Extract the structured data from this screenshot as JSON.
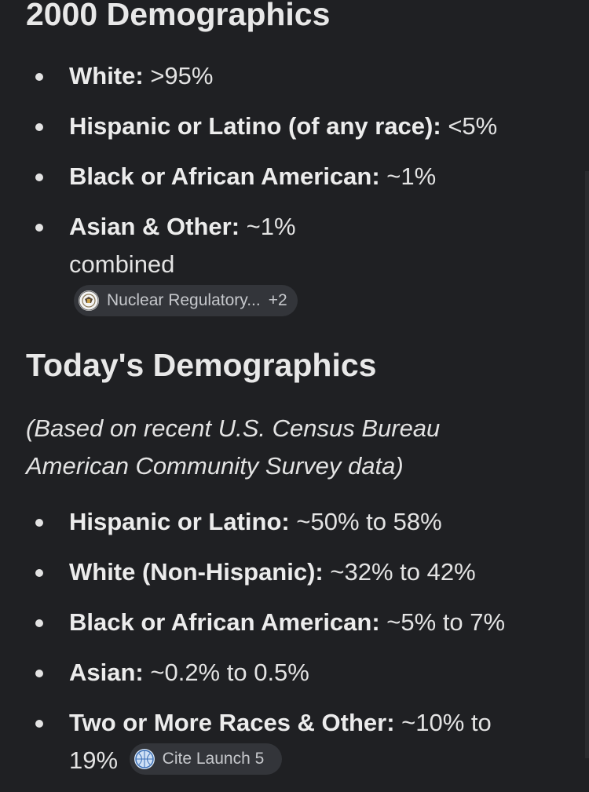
{
  "section_2000": {
    "heading": "2000 Demographics",
    "items": [
      {
        "label": "White:",
        "value": " >95%"
      },
      {
        "label": "Hispanic or Latino (of any race):",
        "value": " <5%"
      },
      {
        "label": "Black or African American:",
        "value": " ~1%"
      },
      {
        "label": "Asian & Other:",
        "value": " ~1% combined"
      }
    ],
    "source_chip": {
      "text": "Nuclear Regulatory...",
      "count": "+2",
      "icon": "seal-icon"
    }
  },
  "section_today": {
    "heading": "Today's Demographics",
    "subtitle": "(Based on recent U.S. Census Bureau American Community Survey data)",
    "items": [
      {
        "label": "Hispanic or Latino:",
        "value": " ~50% to 58%"
      },
      {
        "label": "White (Non-Hispanic):",
        "value": " ~32% to 42%"
      },
      {
        "label": "Black or African American:",
        "value": " ~5% to 7%"
      },
      {
        "label": "Asian:",
        "value": " ~0.2% to 0.5%"
      },
      {
        "label": "Two or More Races & Other:",
        "value": " ~10% to 19%"
      }
    ],
    "source_chip": {
      "text": "Cite Launch 5",
      "count": "",
      "icon": "globe-icon"
    }
  },
  "colors": {
    "background": "#1f2023",
    "text": "#e3e3e3",
    "chip_background": "#33353a"
  }
}
